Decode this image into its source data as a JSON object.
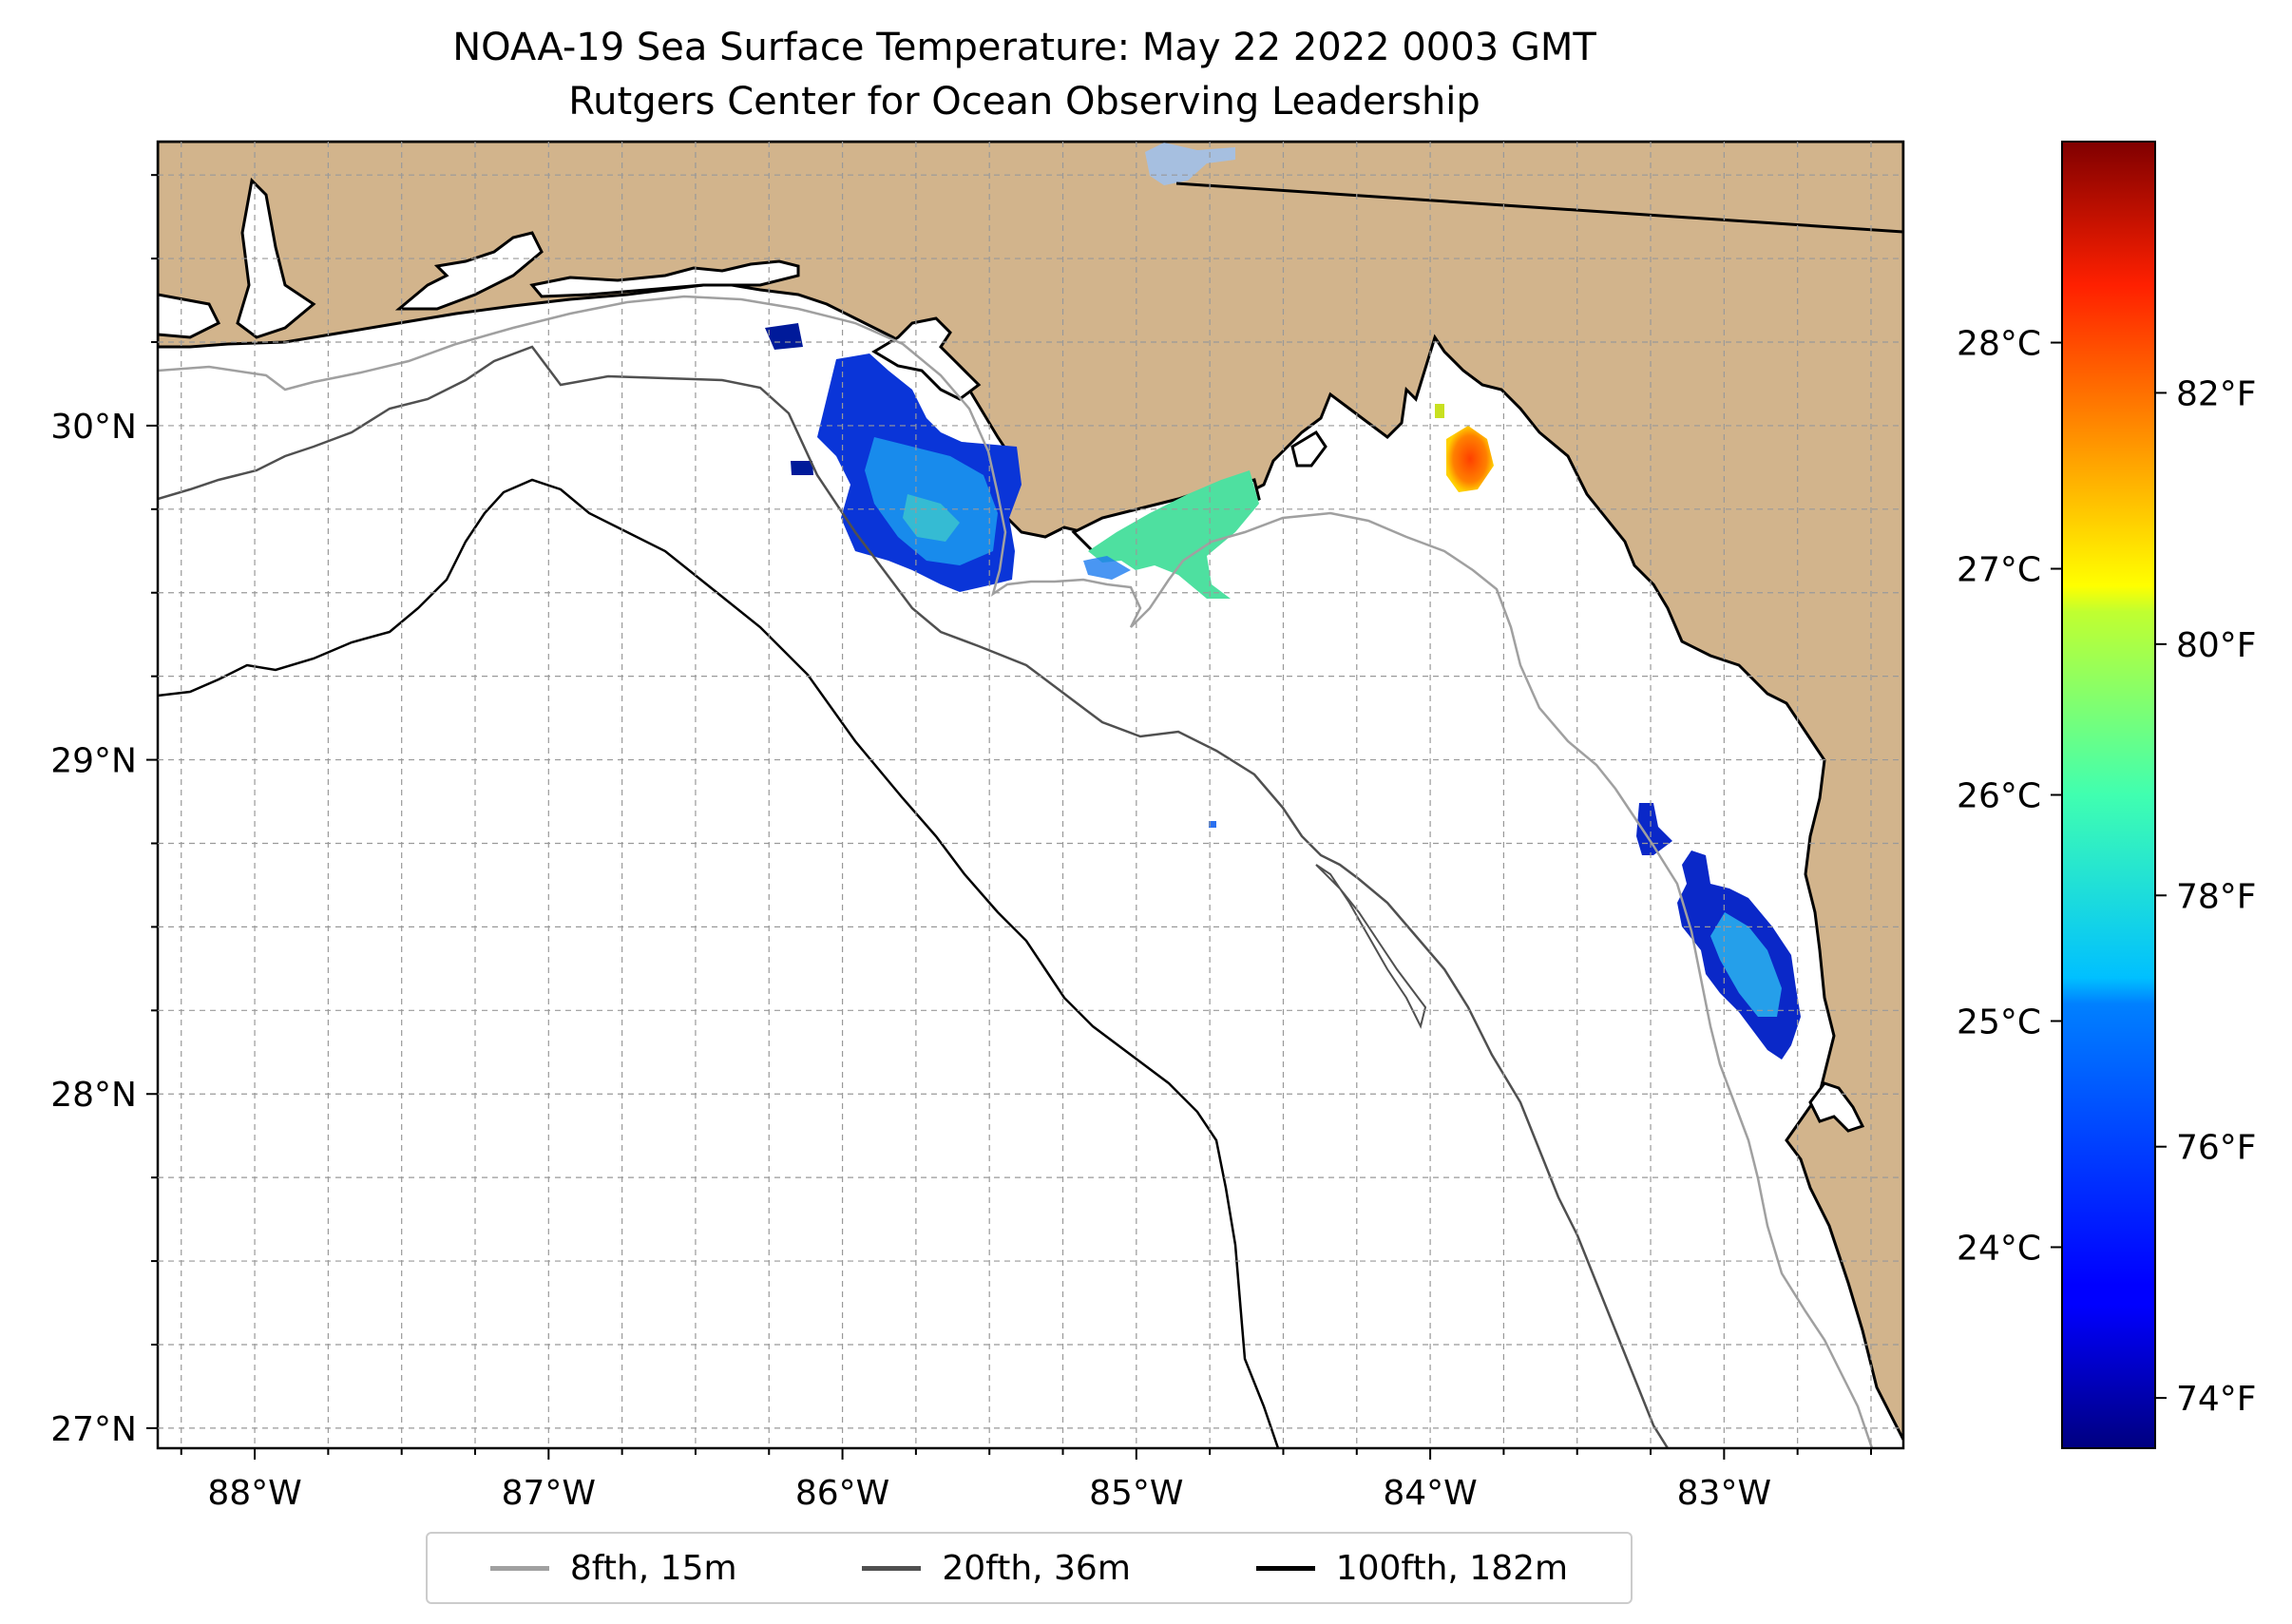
{
  "title": {
    "line1": "NOAA-19 Sea Surface Temperature: May 22 2022 0003 GMT",
    "line2": "Rutgers Center for Ocean Observing Leadership"
  },
  "map": {
    "extent": {
      "lon": [
        -88.33,
        -82.39
      ],
      "lat": [
        26.94,
        30.85
      ]
    },
    "lon_ticks": [
      {
        "value": -88,
        "label": "88°W"
      },
      {
        "value": -87,
        "label": "87°W"
      },
      {
        "value": -86,
        "label": "86°W"
      },
      {
        "value": -85,
        "label": "85°W"
      },
      {
        "value": -84,
        "label": "84°W"
      },
      {
        "value": -83,
        "label": "83°W"
      }
    ],
    "lat_ticks": [
      {
        "value": 30,
        "label": "30°N"
      },
      {
        "value": 29,
        "label": "29°N"
      },
      {
        "value": 28,
        "label": "28°N"
      },
      {
        "value": 27,
        "label": "27°N"
      }
    ],
    "colors": {
      "land": "#d2b48c",
      "ocean": "#ffffff",
      "lake": "#a6bfe0"
    }
  },
  "colorbar": {
    "colormap": "jet",
    "range_f": [
      73.6,
      84.0
    ],
    "celsius_ticks": [
      {
        "value": 24,
        "label": "24°C"
      },
      {
        "value": 25,
        "label": "25°C"
      },
      {
        "value": 26,
        "label": "26°C"
      },
      {
        "value": 27,
        "label": "27°C"
      },
      {
        "value": 28,
        "label": "28°C"
      }
    ],
    "fahrenheit_ticks": [
      {
        "value": 74,
        "label": "74°F"
      },
      {
        "value": 76,
        "label": "76°F"
      },
      {
        "value": 78,
        "label": "78°F"
      },
      {
        "value": 80,
        "label": "80°F"
      },
      {
        "value": 82,
        "label": "82°F"
      }
    ]
  },
  "legend": {
    "items": [
      {
        "label": "8fth, 15m",
        "color": "#a0a0a0"
      },
      {
        "label": "20fth, 36m",
        "color": "#505050"
      },
      {
        "label": "100fth, 182m",
        "color": "#000000"
      }
    ]
  }
}
